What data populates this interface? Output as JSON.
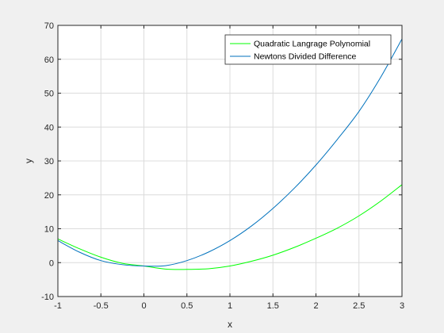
{
  "chart_data": {
    "type": "line",
    "title": "",
    "xlabel": "x",
    "ylabel": "y",
    "xlim": [
      -1,
      3
    ],
    "ylim": [
      -10,
      70
    ],
    "xticks": [
      -1,
      -0.5,
      0,
      0.5,
      1,
      1.5,
      2,
      2.5,
      3
    ],
    "yticks": [
      -10,
      0,
      10,
      20,
      30,
      40,
      50,
      60,
      70
    ],
    "grid": true,
    "legend_position": "top-right",
    "series": [
      {
        "name": "Quadratic Langrage Polynomial",
        "color": "#00ff00",
        "x": [
          -1,
          -0.75,
          -0.5,
          -0.25,
          0,
          0.25,
          0.5,
          0.75,
          1,
          1.25,
          1.5,
          1.75,
          2,
          2.25,
          2.5,
          2.75,
          3
        ],
        "y": [
          7,
          4.1,
          1.6,
          -0.2,
          -1,
          -1.9,
          -2,
          -1.8,
          -1,
          0.4,
          2.2,
          4.5,
          7.2,
          10.2,
          13.8,
          18.1,
          23
        ]
      },
      {
        "name": "Newtons Divided Difference",
        "color": "#0072bd",
        "x": [
          -1,
          -0.75,
          -0.5,
          -0.25,
          0,
          0.25,
          0.5,
          0.75,
          1,
          1.25,
          1.5,
          1.75,
          2,
          2.25,
          2.5,
          2.75,
          3
        ],
        "y": [
          6.5,
          3.1,
          0.6,
          -0.6,
          -1,
          -0.9,
          0.6,
          3.1,
          6.5,
          10.8,
          16,
          22,
          28.8,
          36.4,
          44.6,
          54.6,
          66
        ]
      }
    ]
  }
}
